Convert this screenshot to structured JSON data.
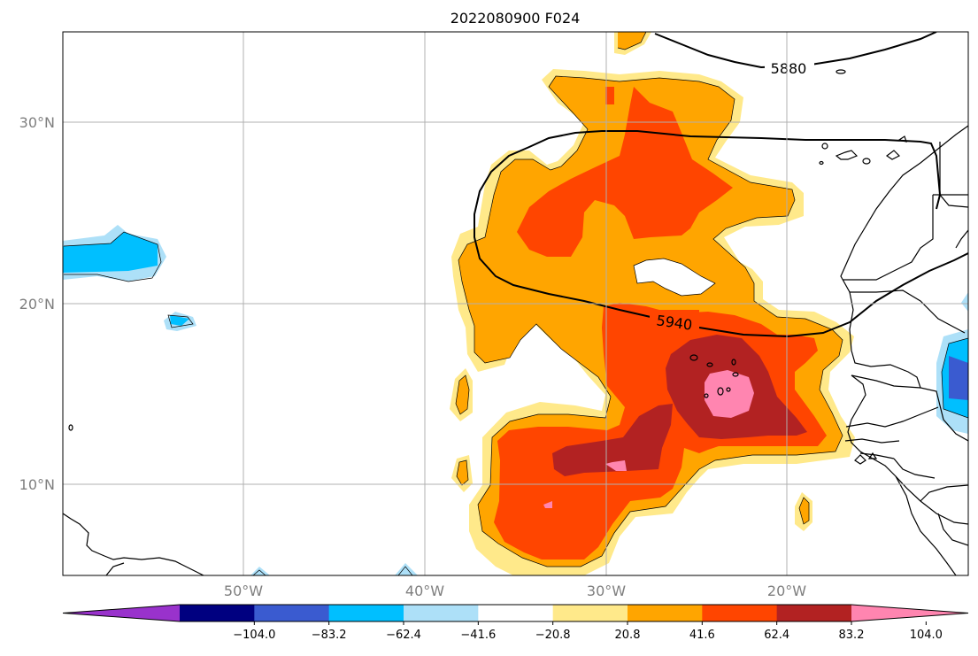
{
  "title": "2022080900 F024",
  "map": {
    "lon_range": [
      -60,
      -10
    ],
    "lat_range": [
      5,
      35
    ],
    "lat_labels": [
      "30°N",
      "20°N",
      "10°N"
    ],
    "lon_labels": [
      "50°W",
      "40°W",
      "30°W",
      "20°W"
    ],
    "grid": true
  },
  "contours": {
    "labels": [
      "5880",
      "5940"
    ]
  },
  "colorbar": {
    "orientation": "horizontal",
    "extend": "both",
    "colors": [
      "#9932cc",
      "#000080",
      "#3a5bd0",
      "#00bfff",
      "#ade0f8",
      "#ffffff",
      "#ffe98a",
      "#ffa500",
      "#ff4500",
      "#b22222",
      "#ff85b0"
    ],
    "tick_labels": [
      "−104.0",
      "−83.2",
      "−62.4",
      "−41.6",
      "−20.8",
      "20.8",
      "41.6",
      "62.4",
      "83.2",
      "104.0"
    ]
  }
}
